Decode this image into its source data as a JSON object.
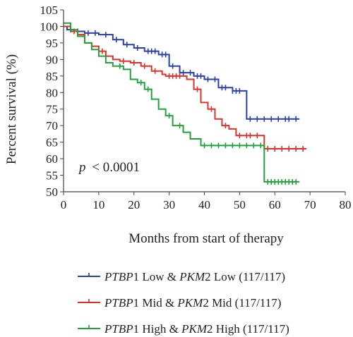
{
  "chart_data": {
    "type": "line",
    "chart_style": "kaplan-meier step curves with censor ticks",
    "xlabel": "Months from start of therapy",
    "ylabel": "Percent survival (%)",
    "xlim": [
      0,
      80
    ],
    "ylim": [
      50,
      105
    ],
    "xticks": [
      0,
      10,
      20,
      30,
      40,
      50,
      60,
      70,
      80
    ],
    "yticks": [
      50,
      55,
      60,
      65,
      70,
      75,
      80,
      85,
      90,
      95,
      100,
      105
    ],
    "annotation": {
      "pvalue_symbol": "p",
      "pvalue_text": "< 0.0001"
    },
    "legend_position": "bottom",
    "series": [
      {
        "name_parts": [
          {
            "text": "PTBP",
            "italic": true
          },
          {
            "text": "1 Low & ",
            "italic": false
          },
          {
            "text": "PKM",
            "italic": true
          },
          {
            "text": "2 Low (117/117)",
            "italic": false
          }
        ],
        "color": "#2b3fa8",
        "x": [
          0,
          1,
          3,
          6,
          10,
          14,
          17,
          20,
          23,
          27,
          30,
          33,
          37,
          40,
          44,
          48,
          52,
          67
        ],
        "y": [
          100,
          99,
          98.5,
          98,
          97.5,
          96,
          94.5,
          93.5,
          92.5,
          91.5,
          88,
          86,
          85,
          84,
          81.5,
          80.5,
          72,
          72
        ],
        "censor_x": [
          4,
          7,
          9,
          12,
          15,
          18,
          21,
          24,
          25,
          26,
          28,
          29,
          31,
          34,
          36,
          38,
          39,
          41,
          43,
          45,
          46,
          48,
          49,
          50,
          53,
          55,
          57,
          59,
          61,
          63,
          64,
          66
        ]
      },
      {
        "name_parts": [
          {
            "text": "PTBP",
            "italic": true
          },
          {
            "text": "1 Mid & ",
            "italic": false
          },
          {
            "text": "PKM",
            "italic": true
          },
          {
            "text": "2 Mid (117/117)",
            "italic": false
          }
        ],
        "color": "#e0302a",
        "x": [
          0,
          2,
          4,
          6,
          8,
          10,
          12,
          14,
          16,
          19,
          22,
          25,
          28,
          29,
          35,
          37,
          39,
          41,
          43,
          45,
          47,
          49,
          57,
          69
        ],
        "y": [
          100,
          98.5,
          97.5,
          95,
          94,
          92.5,
          91,
          90,
          89.5,
          89,
          88,
          86.5,
          85.5,
          85,
          84,
          81,
          77,
          75,
          72,
          70,
          69,
          67,
          63,
          63
        ],
        "censor_x": [
          3,
          11,
          17,
          20,
          23,
          26,
          30,
          31,
          32,
          33,
          38,
          42,
          46,
          50,
          52,
          53,
          55,
          58,
          60,
          62,
          64,
          66,
          68
        ]
      },
      {
        "name_parts": [
          {
            "text": "PTBP",
            "italic": true
          },
          {
            "text": "1 High & ",
            "italic": false
          },
          {
            "text": "PKM",
            "italic": true
          },
          {
            "text": "2 High (117/117)",
            "italic": false
          }
        ],
        "color": "#22a23a",
        "x": [
          0,
          2,
          4,
          6,
          8,
          10,
          12,
          14,
          17,
          19,
          21,
          23,
          25,
          27,
          29,
          31,
          34,
          36,
          39,
          57,
          67
        ],
        "y": [
          101,
          99,
          97,
          95,
          93,
          91,
          89,
          88,
          87,
          84,
          83,
          81,
          78,
          75,
          73,
          70,
          68,
          66,
          64,
          53,
          53
        ],
        "censor_x": [
          2,
          16,
          22,
          24,
          30,
          33,
          40,
          42,
          44,
          46,
          48,
          50,
          52,
          54,
          56,
          58,
          59,
          60,
          61,
          62,
          63,
          64,
          65,
          66
        ]
      }
    ]
  }
}
